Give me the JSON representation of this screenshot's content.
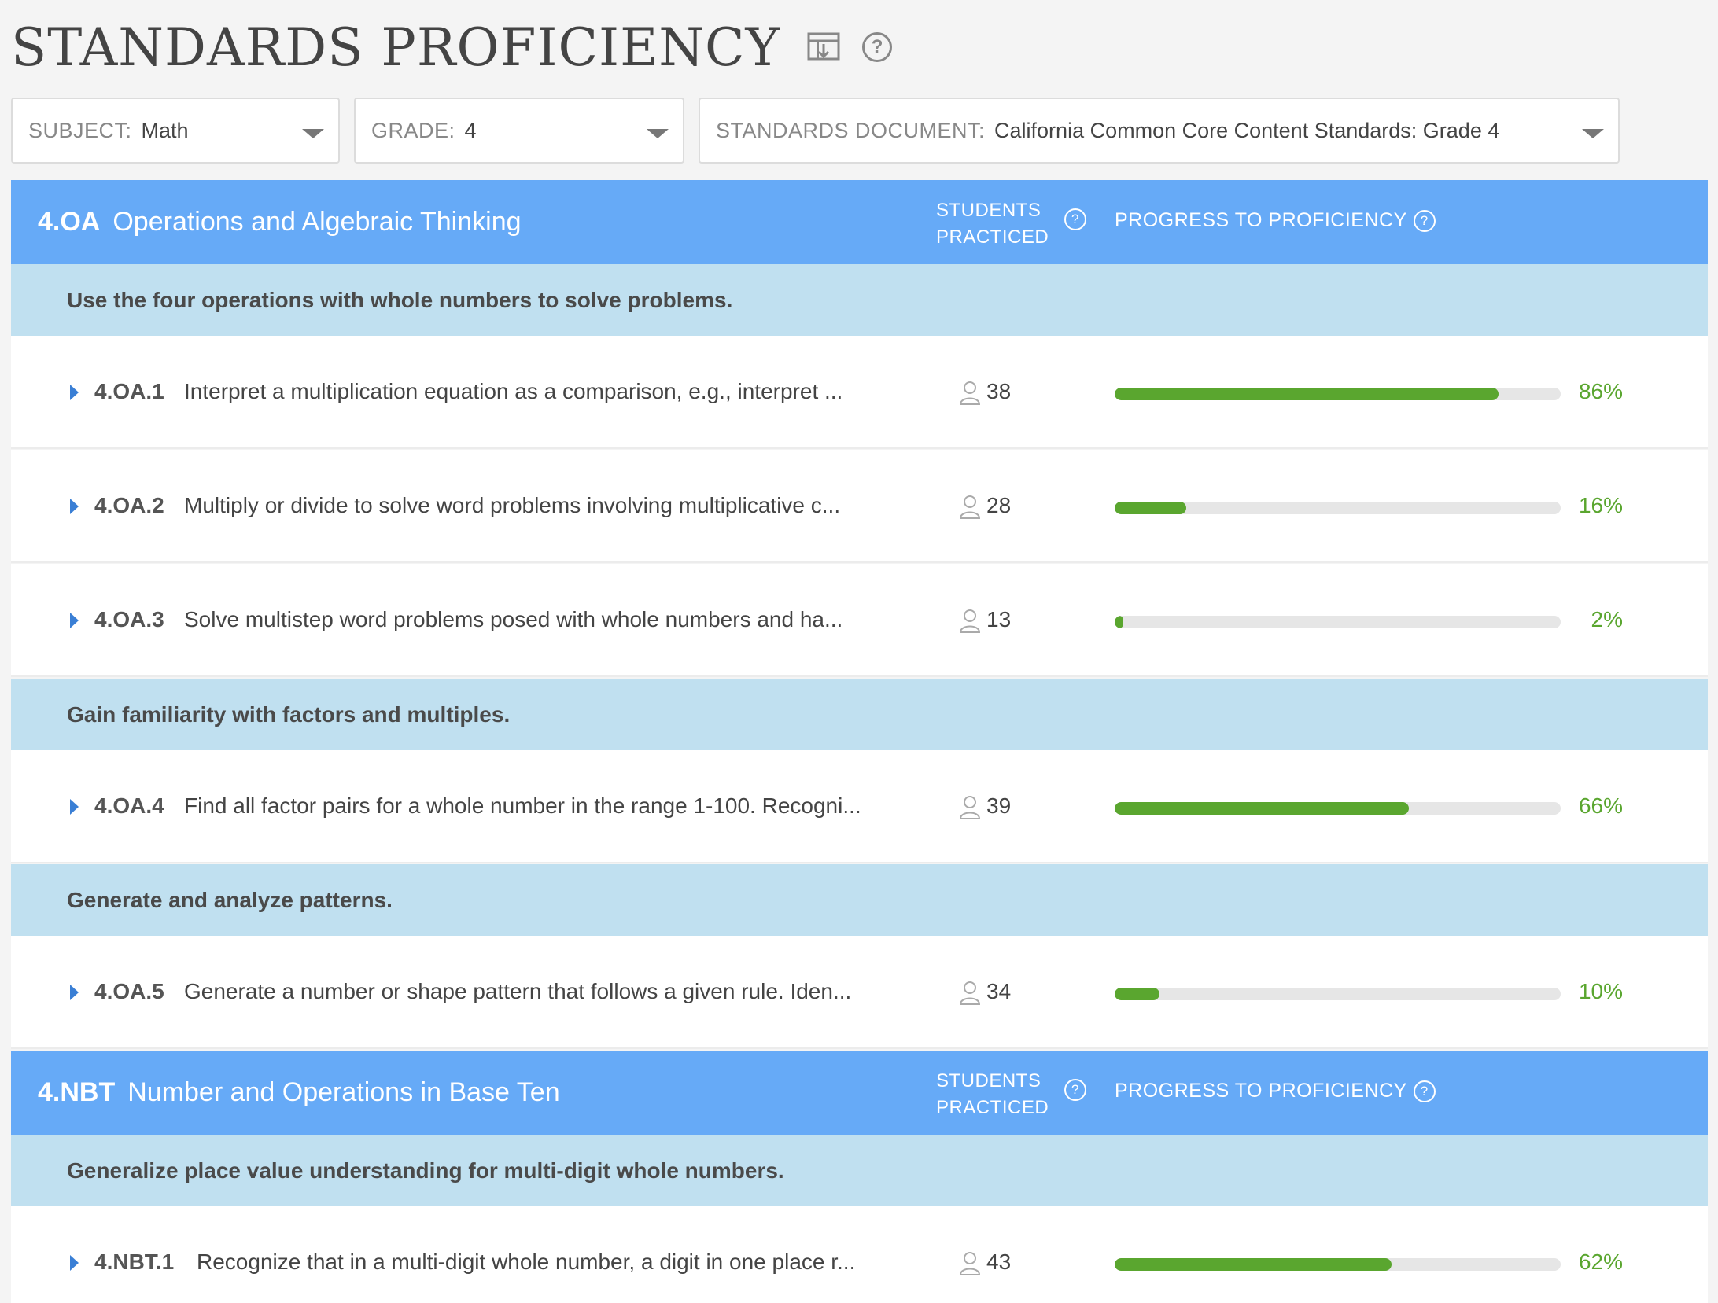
{
  "page": {
    "title": "STANDARDS PROFICIENCY",
    "icons": [
      "download-report-icon",
      "help-icon"
    ]
  },
  "filters": {
    "subject": {
      "label": "SUBJECT:",
      "value": "Math"
    },
    "grade": {
      "label": "GRADE:",
      "value": "4"
    },
    "document": {
      "label": "STANDARDS DOCUMENT:",
      "value": "California Common Core Content Standards: Grade 4"
    }
  },
  "columns": {
    "students_line1": "STUDENTS",
    "students_line2": "PRACTICED",
    "progress": "PROGRESS TO PROFICIENCY",
    "help_glyph": "?"
  },
  "domains": [
    {
      "code": "4.OA",
      "title": "Operations and Algebraic Thinking",
      "clusters": [
        {
          "title": "Use the four operations with whole numbers to solve problems.",
          "standards": [
            {
              "code": "4.OA.1",
              "text": "Interpret a multiplication equation as a comparison, e.g., interpret ...",
              "students": "38",
              "progress": 0.86,
              "pct": "86%"
            },
            {
              "code": "4.OA.2",
              "text": "Multiply or divide to solve word problems involving multiplicative c...",
              "students": "28",
              "progress": 0.16,
              "pct": "16%"
            },
            {
              "code": "4.OA.3",
              "text": "Solve multistep word problems posed with whole numbers and ha...",
              "students": "13",
              "progress": 0.02,
              "pct": "2%"
            }
          ]
        },
        {
          "title": "Gain familiarity with factors and multiples.",
          "standards": [
            {
              "code": "4.OA.4",
              "text": "Find all factor pairs for a whole number in the range 1-100. Recogni...",
              "students": "39",
              "progress": 0.66,
              "pct": "66%"
            }
          ]
        },
        {
          "title": "Generate and analyze patterns.",
          "standards": [
            {
              "code": "4.OA.5",
              "text": "Generate a number or shape pattern that follows a given rule. Iden...",
              "students": "34",
              "progress": 0.1,
              "pct": "10%"
            }
          ]
        }
      ]
    },
    {
      "code": "4.NBT",
      "title": "Number and Operations in Base Ten",
      "clusters": [
        {
          "title": "Generalize place value understanding for multi-digit whole numbers.",
          "standards": [
            {
              "code": "4.NBT.1",
              "text": "Recognize that in a multi-digit whole number, a digit in one place r...",
              "students": "43",
              "progress": 0.62,
              "pct": "62%"
            }
          ]
        }
      ]
    }
  ]
}
